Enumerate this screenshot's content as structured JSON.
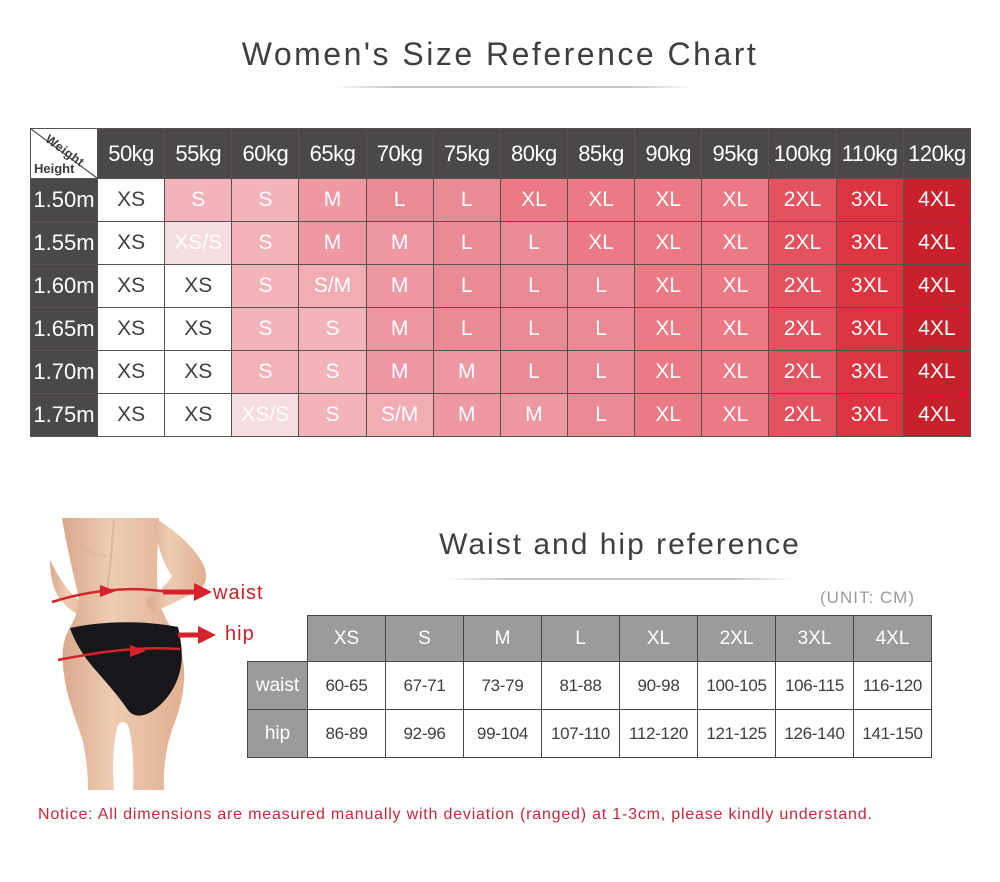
{
  "page": {
    "background": "#ffffff",
    "notice": "Notice:  All dimensions are measured manually with deviation (ranged) at 1-3cm, please kindly understand."
  },
  "chart_data": [
    {
      "type": "table",
      "title": "Women's Size Reference Chart",
      "corner": {
        "top_label": "Weight",
        "bottom_label": "Height"
      },
      "columns": [
        "50kg",
        "55kg",
        "60kg",
        "65kg",
        "70kg",
        "75kg",
        "80kg",
        "85kg",
        "90kg",
        "95kg",
        "100kg",
        "110kg",
        "120kg"
      ],
      "rows": [
        "1.50m",
        "1.55m",
        "1.60m",
        "1.65m",
        "1.70m",
        "1.75m"
      ],
      "values": [
        [
          "XS",
          "S",
          "S",
          "M",
          "L",
          "L",
          "XL",
          "XL",
          "XL",
          "XL",
          "2XL",
          "3XL",
          "4XL"
        ],
        [
          "XS",
          "XS/S",
          "S",
          "M",
          "M",
          "L",
          "L",
          "XL",
          "XL",
          "XL",
          "2XL",
          "3XL",
          "4XL"
        ],
        [
          "XS",
          "XS",
          "S",
          "S/M",
          "M",
          "L",
          "L",
          "L",
          "XL",
          "XL",
          "2XL",
          "3XL",
          "4XL"
        ],
        [
          "XS",
          "XS",
          "S",
          "S",
          "M",
          "L",
          "L",
          "L",
          "XL",
          "XL",
          "2XL",
          "3XL",
          "4XL"
        ],
        [
          "XS",
          "XS",
          "S",
          "S",
          "M",
          "M",
          "L",
          "L",
          "XL",
          "XL",
          "2XL",
          "3XL",
          "4XL"
        ],
        [
          "XS",
          "XS",
          "XS/S",
          "S",
          "S/M",
          "M",
          "M",
          "L",
          "XL",
          "XL",
          "2XL",
          "3XL",
          "4XL"
        ]
      ]
    },
    {
      "type": "table",
      "title": "Waist and hip reference",
      "unit": "(UNIT: CM)",
      "columns": [
        "XS",
        "S",
        "M",
        "L",
        "XL",
        "2XL",
        "3XL",
        "4XL"
      ],
      "rows": [
        {
          "label": "waist",
          "values": [
            "60-65",
            "67-71",
            "73-79",
            "81-88",
            "90-98",
            "100-105",
            "106-115",
            "116-120"
          ]
        },
        {
          "label": "hip",
          "values": [
            "86-89",
            "92-96",
            "99-104",
            "107-110",
            "112-120",
            "121-125",
            "126-140",
            "141-150"
          ]
        }
      ]
    }
  ],
  "figure": {
    "waist_label": "waist",
    "hip_label": "hip"
  },
  "colors": {
    "header_bg": "#4b4849",
    "header_text": "#ffffff",
    "table2_header_bg": "#9b9b9b",
    "accent_red": "#d6232b",
    "notice_red": "#c6273b",
    "title_gray": "#3f3f3f",
    "unit_gray": "#9b9b9b",
    "size_colors": {
      "XS": "#ffffff",
      "XS/S": "#f6dde1",
      "S": "#f2b3ba",
      "S/M": "#f1acb4",
      "M": "#ee98a2",
      "L": "#ea8a94",
      "XL": "#ec7a85",
      "2XL": "#e4525f",
      "3XL": "#dc3440",
      "4XL": "#c9212c"
    },
    "size_text_dark": "#3f3f3f",
    "size_text_light": "#ffffff"
  }
}
